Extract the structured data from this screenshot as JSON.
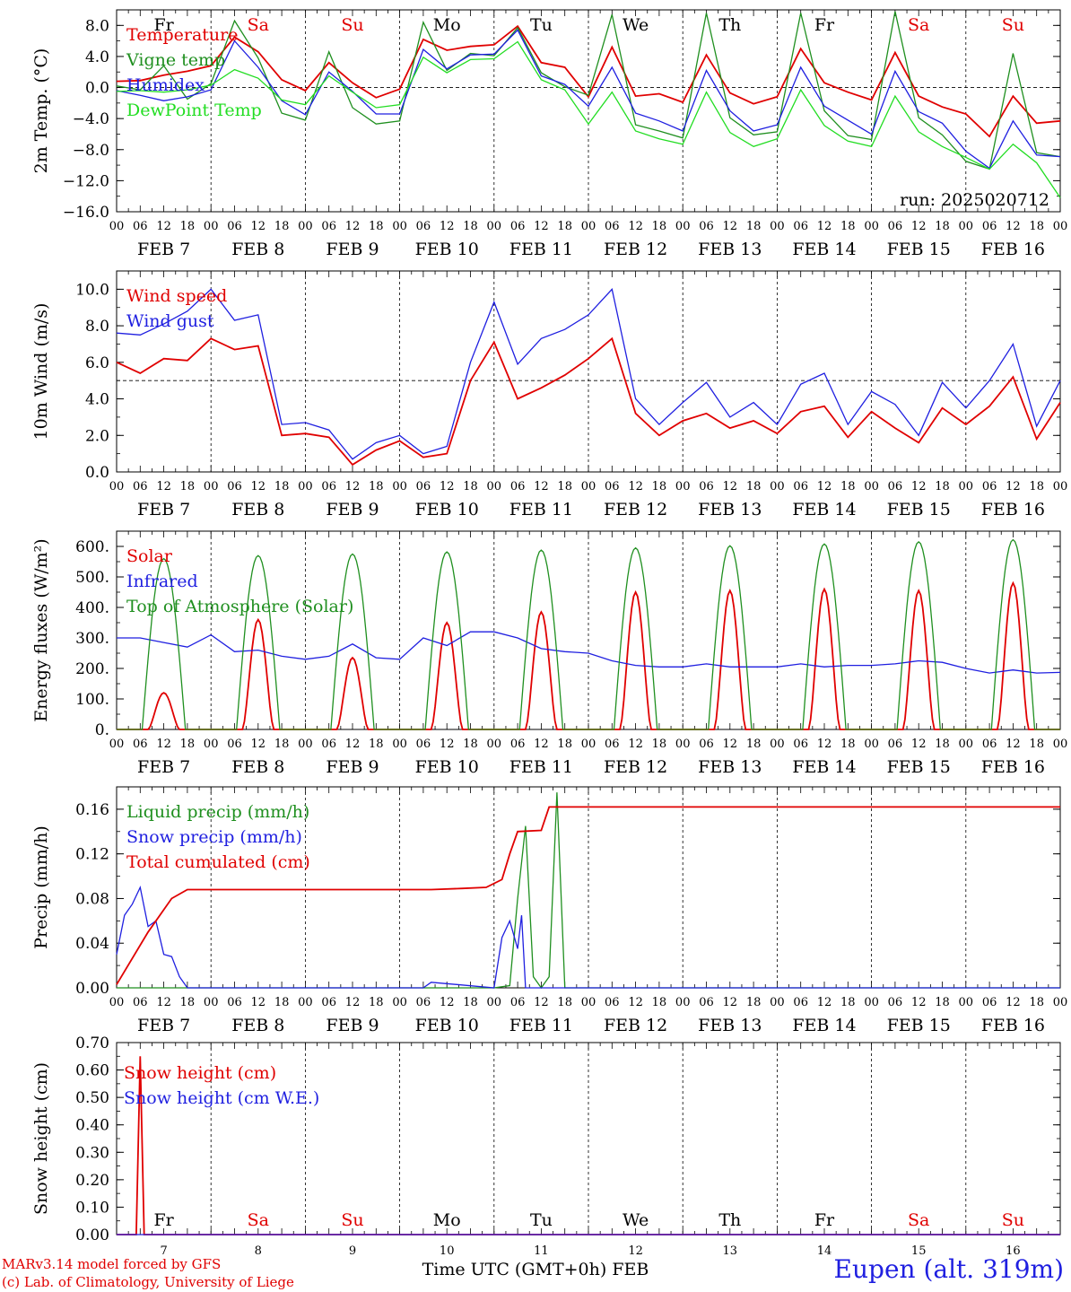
{
  "days": [
    "FEB 7",
    "FEB 8",
    "FEB 9",
    "FEB 10",
    "FEB 11",
    "FEB 12",
    "FEB 13",
    "FEB 14",
    "FEB 15",
    "FEB 16"
  ],
  "day_numbers": [
    "7",
    "8",
    "9",
    "10",
    "11",
    "12",
    "13",
    "14",
    "15",
    "16"
  ],
  "weekdays": [
    {
      "label": "Fr",
      "color": "#000000"
    },
    {
      "label": "Sa",
      "color": "#e00000"
    },
    {
      "label": "Su",
      "color": "#e00000"
    },
    {
      "label": "Mo",
      "color": "#000000"
    },
    {
      "label": "Tu",
      "color": "#000000"
    },
    {
      "label": "We",
      "color": "#000000"
    },
    {
      "label": "Th",
      "color": "#000000"
    },
    {
      "label": "Fr",
      "color": "#000000"
    },
    {
      "label": "Sa",
      "color": "#e00000"
    },
    {
      "label": "Su",
      "color": "#e00000"
    }
  ],
  "hour_ticks": [
    "00",
    "06",
    "12",
    "18"
  ],
  "end_tick": "00",
  "run_label": "run: 2025020712",
  "time_axis_label": "Time UTC (GMT+0h)",
  "time_axis_month": "FEB",
  "footer": {
    "line1": "MARv3.14 model forced by GFS",
    "line2": "(c) Lab. of Climatology, University of Liege"
  },
  "station": "Eupen (alt. 319m)",
  "colors": {
    "red": "#e00000",
    "green": "#1f8f1f",
    "blue": "#1f1fe0",
    "lime": "#22dd22"
  },
  "chart_data": [
    {
      "type": "line",
      "ylabel": "2m Temp. (°C)",
      "ylim": [
        -16,
        10
      ],
      "yticks": [
        -16,
        -12,
        -8,
        -4,
        0,
        4,
        8
      ],
      "ytick_labels": [
        "−16.0",
        "−12.0",
        "−8.0",
        "−4.0",
        "0.0",
        "4.0",
        "8.0"
      ],
      "refline": 0,
      "x_unit": "hours from 2025-02-07 00 UTC",
      "series": [
        {
          "name": "Temperature",
          "color": "red",
          "x": [
            0,
            6,
            12,
            18,
            24,
            30,
            36,
            42,
            48,
            54,
            60,
            66,
            72,
            78,
            84,
            90,
            96,
            102,
            108,
            114,
            120,
            126,
            132,
            138,
            144,
            150,
            156,
            162,
            168,
            174,
            180,
            186,
            192,
            198,
            204,
            210,
            216,
            222,
            228,
            234,
            240
          ],
          "y": [
            0.8,
            0.9,
            1.6,
            2.1,
            2.8,
            6.5,
            4.6,
            1.0,
            -0.4,
            3.2,
            0.6,
            -1.3,
            -0.2,
            6.2,
            4.8,
            5.3,
            5.5,
            7.9,
            3.2,
            2.6,
            -1.2,
            5.2,
            -1.1,
            -0.8,
            -1.9,
            4.2,
            -0.7,
            -2.1,
            -1.2,
            5.0,
            0.6,
            -0.6,
            -1.6,
            4.5,
            -1.1,
            -2.5,
            -3.4,
            -6.3,
            -1.1,
            -4.6,
            -4.3
          ]
        },
        {
          "name": "Vigne temp",
          "color": "green",
          "x": [
            0,
            6,
            12,
            18,
            24,
            30,
            36,
            42,
            48,
            54,
            60,
            66,
            72,
            78,
            84,
            90,
            96,
            102,
            108,
            114,
            120,
            126,
            132,
            138,
            144,
            150,
            156,
            162,
            168,
            174,
            180,
            186,
            192,
            198,
            204,
            210,
            216,
            222,
            228,
            234,
            240
          ],
          "y": [
            0.2,
            -0.3,
            2.8,
            -1.5,
            0.5,
            8.6,
            3.8,
            -3.3,
            -4.2,
            4.6,
            -2.6,
            -4.7,
            -4.3,
            8.4,
            2.2,
            4.4,
            4.1,
            7.7,
            1.9,
            0.1,
            -1.0,
            9.4,
            -4.8,
            -5.6,
            -6.5,
            9.6,
            -3.9,
            -6.1,
            -5.7,
            9.6,
            -3.0,
            -6.2,
            -6.7,
            9.8,
            -3.9,
            -6.1,
            -9.5,
            -10.5,
            4.4,
            -8.4,
            -8.9
          ]
        },
        {
          "name": "Humidex",
          "color": "blue",
          "x": [
            0,
            6,
            12,
            18,
            24,
            30,
            36,
            42,
            48,
            54,
            60,
            66,
            72,
            78,
            84,
            90,
            96,
            102,
            108,
            114,
            120,
            126,
            132,
            138,
            144,
            150,
            156,
            162,
            168,
            174,
            180,
            186,
            192,
            198,
            204,
            210,
            216,
            222,
            228,
            234,
            240
          ],
          "y": [
            -0.4,
            -1.0,
            -1.7,
            -1.2,
            -0.3,
            6.0,
            2.6,
            -1.7,
            -3.5,
            2.0,
            -0.5,
            -3.4,
            -3.4,
            4.9,
            2.4,
            4.2,
            4.3,
            7.4,
            1.5,
            0.4,
            -2.4,
            2.6,
            -3.3,
            -4.3,
            -5.6,
            2.2,
            -3.0,
            -5.6,
            -4.8,
            2.6,
            -2.4,
            -4.2,
            -6.0,
            2.1,
            -3.1,
            -4.6,
            -8.2,
            -10.4,
            -4.3,
            -8.7,
            -8.9
          ]
        },
        {
          "name": "DewPoint Temp",
          "color": "lime",
          "x": [
            0,
            6,
            12,
            18,
            24,
            30,
            36,
            42,
            48,
            54,
            60,
            66,
            72,
            78,
            84,
            90,
            96,
            102,
            108,
            114,
            120,
            126,
            132,
            138,
            144,
            150,
            156,
            162,
            168,
            174,
            180,
            186,
            192,
            198,
            204,
            210,
            216,
            222,
            228,
            234,
            240
          ],
          "y": [
            -0.5,
            -0.4,
            -0.6,
            -0.3,
            0.3,
            2.3,
            1.2,
            -1.6,
            -2.2,
            1.5,
            -0.6,
            -2.6,
            -2.2,
            3.9,
            1.9,
            3.6,
            3.7,
            5.9,
            1.0,
            -0.3,
            -4.7,
            -0.6,
            -5.6,
            -6.6,
            -7.3,
            -0.6,
            -5.8,
            -7.6,
            -6.6,
            -0.3,
            -4.9,
            -6.9,
            -7.6,
            -1.1,
            -5.7,
            -7.6,
            -9.0,
            -10.5,
            -7.3,
            -9.7,
            -14.2
          ]
        }
      ]
    },
    {
      "type": "line",
      "ylabel": "10m Wind (m/s)",
      "ylim": [
        0,
        11
      ],
      "yticks": [
        0,
        2,
        4,
        6,
        8,
        10
      ],
      "ytick_labels": [
        "0.0",
        "2.0",
        "4.0",
        "6.0",
        "8.0",
        "10.0"
      ],
      "refline": 5,
      "series": [
        {
          "name": "Wind speed",
          "color": "red",
          "x": [
            0,
            6,
            12,
            18,
            24,
            30,
            36,
            42,
            48,
            54,
            60,
            66,
            72,
            78,
            84,
            90,
            96,
            102,
            108,
            114,
            120,
            126,
            132,
            138,
            144,
            150,
            156,
            162,
            168,
            174,
            180,
            186,
            192,
            198,
            204,
            210,
            216,
            222,
            228,
            234,
            240
          ],
          "y": [
            6.0,
            5.4,
            6.2,
            6.1,
            7.3,
            6.7,
            6.9,
            2.0,
            2.1,
            1.9,
            0.4,
            1.2,
            1.7,
            0.8,
            1.0,
            5.0,
            7.1,
            4.0,
            4.6,
            5.3,
            6.2,
            7.3,
            3.2,
            2.0,
            2.8,
            3.2,
            2.4,
            2.8,
            2.1,
            3.3,
            3.6,
            1.9,
            3.3,
            2.4,
            1.6,
            3.5,
            2.6,
            3.6,
            5.2,
            1.8,
            3.8
          ]
        },
        {
          "name": "Wind gust",
          "color": "blue",
          "x": [
            0,
            6,
            12,
            18,
            24,
            30,
            36,
            42,
            48,
            54,
            60,
            66,
            72,
            78,
            84,
            90,
            96,
            102,
            108,
            114,
            120,
            126,
            132,
            138,
            144,
            150,
            156,
            162,
            168,
            174,
            180,
            186,
            192,
            198,
            204,
            210,
            216,
            222,
            228,
            234,
            240
          ],
          "y": [
            7.6,
            7.5,
            8.1,
            8.8,
            10.0,
            8.3,
            8.6,
            2.6,
            2.7,
            2.3,
            0.7,
            1.6,
            2.0,
            1.0,
            1.4,
            6.0,
            9.3,
            5.9,
            7.3,
            7.8,
            8.6,
            10.0,
            4.0,
            2.6,
            3.8,
            4.9,
            3.0,
            3.8,
            2.6,
            4.8,
            5.4,
            2.6,
            4.4,
            3.7,
            2.0,
            4.9,
            3.5,
            5.0,
            7.0,
            2.5,
            5.0
          ]
        }
      ]
    },
    {
      "type": "line",
      "ylabel": "Energy fluxes (W/m²)",
      "ylim": [
        0,
        650
      ],
      "yticks": [
        0,
        100,
        200,
        300,
        400,
        500,
        600
      ],
      "ytick_labels": [
        "0.",
        "100.",
        "200.",
        "300.",
        "400.",
        "500.",
        "600."
      ],
      "series": [
        {
          "name": "Solar",
          "color": "red",
          "peaks": [
            120,
            360,
            235,
            350,
            385,
            450,
            455,
            460,
            455,
            480
          ]
        },
        {
          "name": "Infrared",
          "color": "blue",
          "x": [
            0,
            6,
            12,
            18,
            24,
            30,
            36,
            42,
            48,
            54,
            60,
            66,
            72,
            78,
            84,
            90,
            96,
            102,
            108,
            114,
            120,
            126,
            132,
            138,
            144,
            150,
            156,
            162,
            168,
            174,
            180,
            186,
            192,
            198,
            204,
            210,
            216,
            222,
            228,
            234,
            240
          ],
          "y": [
            300,
            300,
            285,
            270,
            310,
            255,
            260,
            240,
            230,
            240,
            280,
            235,
            230,
            300,
            275,
            320,
            320,
            300,
            265,
            255,
            250,
            225,
            210,
            205,
            205,
            215,
            205,
            205,
            205,
            215,
            205,
            210,
            210,
            215,
            225,
            220,
            200,
            185,
            195,
            185,
            187
          ]
        },
        {
          "name": "Top of Atmosphere (Solar)",
          "color": "green",
          "peaks": [
            560,
            570,
            575,
            582,
            588,
            595,
            602,
            608,
            615,
            622
          ]
        }
      ]
    },
    {
      "type": "line",
      "ylabel": "Precip (mm/h)",
      "ylim": [
        0,
        0.18
      ],
      "yticks": [
        0,
        0.04,
        0.08,
        0.12,
        0.16
      ],
      "ytick_labels": [
        "0.00",
        "0.04",
        "0.08",
        "0.12",
        "0.16"
      ],
      "series": [
        {
          "name": "Liquid precip (mm/h)",
          "color": "green",
          "x": [
            0,
            96,
            100,
            102,
            104,
            106,
            108,
            110,
            112,
            114,
            116,
            240
          ],
          "y": [
            0,
            0,
            0.002,
            0.08,
            0.145,
            0.01,
            0,
            0.01,
            0.175,
            0,
            0,
            0
          ]
        },
        {
          "name": "Snow precip (mm/h)",
          "color": "blue",
          "x": [
            0,
            2,
            4,
            6,
            8,
            10,
            12,
            14,
            16,
            18,
            20,
            78,
            80,
            96,
            98,
            100,
            102,
            103,
            104,
            106,
            240
          ],
          "y": [
            0.03,
            0.065,
            0.075,
            0.09,
            0.055,
            0.06,
            0.03,
            0.028,
            0.01,
            0,
            0,
            0,
            0.005,
            0,
            0.045,
            0.06,
            0.035,
            0.065,
            0.0,
            0,
            0
          ]
        },
        {
          "name": "Total cumulated (cm)",
          "color": "red",
          "x": [
            0,
            8,
            14,
            18,
            20,
            80,
            88,
            94,
            98,
            100,
            102,
            108,
            110,
            240
          ],
          "y": [
            0.003,
            0.05,
            0.08,
            0.088,
            0.088,
            0.088,
            0.089,
            0.09,
            0.097,
            0.12,
            0.14,
            0.141,
            0.162,
            0.162
          ]
        }
      ]
    },
    {
      "type": "line",
      "ylabel": "Snow height (cm)",
      "ylim": [
        0,
        0.7
      ],
      "yticks": [
        0,
        0.1,
        0.2,
        0.3,
        0.4,
        0.5,
        0.6,
        0.7
      ],
      "ytick_labels": [
        "0.00",
        "0.10",
        "0.20",
        "0.30",
        "0.40",
        "0.50",
        "0.60",
        "0.70"
      ],
      "series": [
        {
          "name": "Snow height (cm)",
          "color": "red",
          "x": [
            0,
            5,
            6,
            7,
            240
          ],
          "y": [
            0,
            0,
            0.65,
            0,
            0
          ]
        },
        {
          "name": "Snow height (cm W.E.)",
          "color": "blue",
          "x": [
            0,
            240
          ],
          "y": [
            0,
            0
          ]
        }
      ]
    }
  ]
}
